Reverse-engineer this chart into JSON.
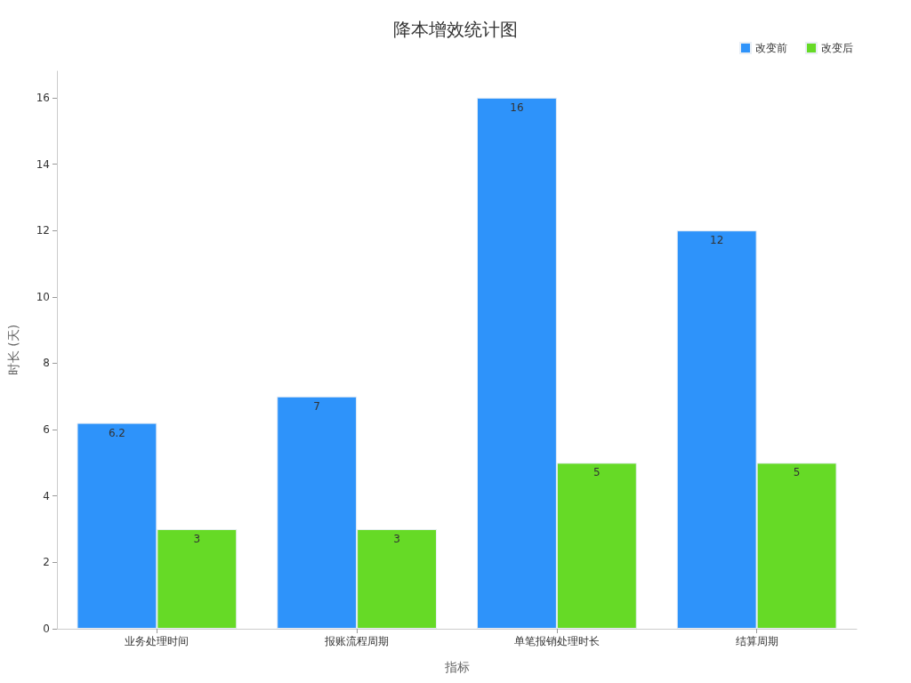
{
  "chart_data": {
    "type": "bar",
    "title": "降本增效统计图",
    "xlabel": "指标",
    "ylabel": "时长 (天)",
    "categories": [
      "业务处理时间",
      "报账流程周期",
      "单笔报销处理时长",
      "结算周期"
    ],
    "series": [
      {
        "name": "改变前",
        "color": "#2e93fa",
        "values": [
          6.2,
          7,
          16,
          12
        ]
      },
      {
        "name": "改变后",
        "color": "#66da26",
        "values": [
          3,
          3,
          5,
          5
        ]
      }
    ],
    "ylim": [
      0,
      16.8
    ],
    "yticks": [
      0,
      2,
      4,
      6,
      8,
      10,
      12,
      14,
      16
    ],
    "grid": false,
    "legend": "top right",
    "data_labels": true
  }
}
